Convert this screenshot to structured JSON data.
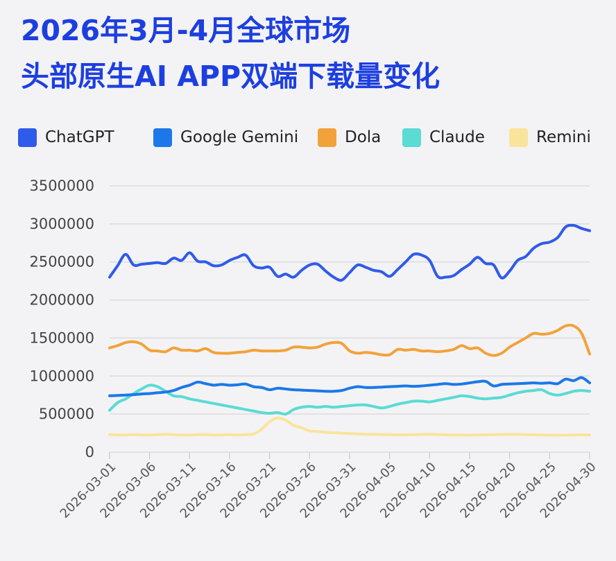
{
  "header": {
    "title_line1": "2026年3月-4月全球市场",
    "title_line2": "头部原生AI APP双端下载量变化"
  },
  "colors": {
    "title": "#1d3fe0",
    "grid": "#dcdcdc",
    "background": "#f3f3f5"
  },
  "chart_data": {
    "type": "line",
    "title": "2026年3月-4月全球市场 头部原生AI APP双端下载量变化",
    "xlabel": "",
    "ylabel": "",
    "ylim": [
      0,
      3500000
    ],
    "y_ticks": [
      0,
      500000,
      1000000,
      1500000,
      2000000,
      2500000,
      3000000,
      3500000
    ],
    "y_tick_labels": [
      "0",
      "500000",
      "1000000",
      "1500000",
      "2000000",
      "2500000",
      "3000000",
      "3500000"
    ],
    "x_tick_labels": [
      "2026-03-01",
      "2026-03-06",
      "2026-03-11",
      "2026-03-16",
      "2026-03-21",
      "2026-03-26",
      "2026-03-31",
      "2026-04-05",
      "2026-04-10",
      "2026-04-15",
      "2026-04-20",
      "2026-04-25",
      "2026-04-30"
    ],
    "grid": true,
    "legend_position": "top",
    "x": [
      "2026-03-01",
      "2026-03-02",
      "2026-03-03",
      "2026-03-04",
      "2026-03-05",
      "2026-03-06",
      "2026-03-07",
      "2026-03-08",
      "2026-03-09",
      "2026-03-10",
      "2026-03-11",
      "2026-03-12",
      "2026-03-13",
      "2026-03-14",
      "2026-03-15",
      "2026-03-16",
      "2026-03-17",
      "2026-03-18",
      "2026-03-19",
      "2026-03-20",
      "2026-03-21",
      "2026-03-22",
      "2026-03-23",
      "2026-03-24",
      "2026-03-25",
      "2026-03-26",
      "2026-03-27",
      "2026-03-28",
      "2026-03-29",
      "2026-03-30",
      "2026-03-31",
      "2026-04-01",
      "2026-04-02",
      "2026-04-03",
      "2026-04-04",
      "2026-04-05",
      "2026-04-06",
      "2026-04-07",
      "2026-04-08",
      "2026-04-09",
      "2026-04-10",
      "2026-04-11",
      "2026-04-12",
      "2026-04-13",
      "2026-04-14",
      "2026-04-15",
      "2026-04-16",
      "2026-04-17",
      "2026-04-18",
      "2026-04-19",
      "2026-04-20",
      "2026-04-21",
      "2026-04-22",
      "2026-04-23",
      "2026-04-24",
      "2026-04-25",
      "2026-04-26",
      "2026-04-27",
      "2026-04-28",
      "2026-04-29",
      "2026-04-30"
    ],
    "series": [
      {
        "name": "ChatGPT",
        "color": "#2f5bea",
        "values": [
          2300000,
          2450000,
          2600000,
          2460000,
          2470000,
          2480000,
          2490000,
          2480000,
          2550000,
          2520000,
          2620000,
          2510000,
          2500000,
          2450000,
          2460000,
          2520000,
          2560000,
          2590000,
          2450000,
          2420000,
          2430000,
          2310000,
          2340000,
          2300000,
          2390000,
          2460000,
          2470000,
          2380000,
          2300000,
          2260000,
          2360000,
          2460000,
          2430000,
          2390000,
          2370000,
          2310000,
          2400000,
          2500000,
          2600000,
          2590000,
          2520000,
          2310000,
          2300000,
          2320000,
          2400000,
          2470000,
          2560000,
          2480000,
          2460000,
          2290000,
          2380000,
          2520000,
          2570000,
          2680000,
          2740000,
          2760000,
          2820000,
          2960000,
          2980000,
          2940000,
          2910000
        ]
      },
      {
        "name": "Google Gemini",
        "color": "#1c78e8",
        "values": [
          740000,
          745000,
          750000,
          755000,
          765000,
          770000,
          780000,
          790000,
          810000,
          850000,
          880000,
          920000,
          900000,
          880000,
          890000,
          880000,
          885000,
          895000,
          860000,
          850000,
          820000,
          840000,
          830000,
          820000,
          815000,
          810000,
          805000,
          800000,
          800000,
          810000,
          840000,
          860000,
          850000,
          850000,
          855000,
          860000,
          865000,
          870000,
          865000,
          870000,
          880000,
          890000,
          900000,
          890000,
          895000,
          910000,
          925000,
          930000,
          870000,
          890000,
          895000,
          900000,
          905000,
          910000,
          905000,
          910000,
          900000,
          960000,
          940000,
          980000,
          910000
        ]
      },
      {
        "name": "Dola",
        "color": "#f2a23a",
        "values": [
          1370000,
          1400000,
          1440000,
          1450000,
          1420000,
          1340000,
          1330000,
          1320000,
          1370000,
          1340000,
          1340000,
          1330000,
          1360000,
          1310000,
          1300000,
          1300000,
          1310000,
          1320000,
          1340000,
          1330000,
          1330000,
          1330000,
          1340000,
          1380000,
          1380000,
          1370000,
          1380000,
          1420000,
          1440000,
          1430000,
          1330000,
          1300000,
          1310000,
          1300000,
          1280000,
          1280000,
          1350000,
          1340000,
          1350000,
          1330000,
          1330000,
          1320000,
          1330000,
          1350000,
          1400000,
          1360000,
          1370000,
          1300000,
          1270000,
          1300000,
          1380000,
          1440000,
          1500000,
          1560000,
          1550000,
          1560000,
          1600000,
          1660000,
          1660000,
          1560000,
          1290000
        ]
      },
      {
        "name": "Claude",
        "color": "#5adbd4",
        "values": [
          550000,
          650000,
          700000,
          770000,
          830000,
          880000,
          860000,
          800000,
          740000,
          730000,
          700000,
          680000,
          660000,
          640000,
          620000,
          600000,
          580000,
          560000,
          540000,
          520000,
          510000,
          520000,
          500000,
          560000,
          590000,
          600000,
          590000,
          600000,
          590000,
          600000,
          610000,
          620000,
          620000,
          600000,
          580000,
          600000,
          630000,
          650000,
          670000,
          670000,
          660000,
          680000,
          700000,
          720000,
          740000,
          730000,
          710000,
          700000,
          710000,
          720000,
          750000,
          780000,
          800000,
          810000,
          820000,
          770000,
          750000,
          770000,
          800000,
          810000,
          800000
        ]
      },
      {
        "name": "Remini",
        "color": "#fae49b",
        "values": [
          230000,
          225000,
          225000,
          230000,
          225000,
          225000,
          230000,
          235000,
          230000,
          225000,
          225000,
          230000,
          230000,
          225000,
          225000,
          230000,
          225000,
          230000,
          240000,
          300000,
          400000,
          450000,
          420000,
          350000,
          320000,
          280000,
          270000,
          260000,
          255000,
          250000,
          245000,
          240000,
          235000,
          235000,
          230000,
          230000,
          228000,
          228000,
          230000,
          232000,
          235000,
          230000,
          228000,
          226000,
          225000,
          224000,
          226000,
          228000,
          230000,
          232000,
          234000,
          232000,
          230000,
          228000,
          226000,
          224000,
          222000,
          224000,
          226000,
          228000,
          225000
        ]
      }
    ]
  }
}
